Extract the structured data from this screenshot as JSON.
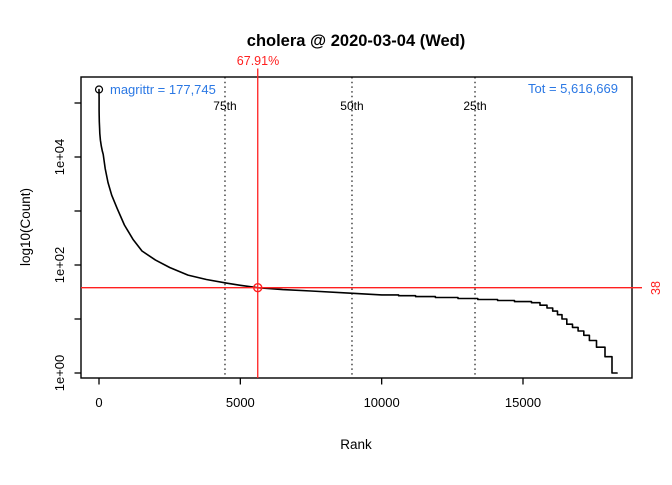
{
  "title": "cholera @ 2020-03-04 (Wed)",
  "annotations": {
    "top_package_label": "magrittr = 177,745",
    "total_label": "Tot =  5,616,669",
    "percent_label": "67.91%",
    "crosshair_value_label": "38"
  },
  "colors": {
    "accent_red": "#FF1F1F",
    "accent_blue": "#2B78E4",
    "curve_black": "#000000"
  },
  "axes": {
    "x": {
      "label": "Rank",
      "ticks": [
        0,
        5000,
        10000,
        15000
      ],
      "tick_labels": [
        "0",
        "5000",
        "10000",
        "15000"
      ]
    },
    "y": {
      "label": "log10(Count)",
      "ticks": [
        1,
        10,
        100,
        1000,
        10000,
        100000
      ],
      "tick_labels": [
        "1e+00",
        "",
        "1e+02",
        "",
        "1e+04",
        ""
      ]
    }
  },
  "chart_data": {
    "type": "line",
    "title": "cholera @ 2020-03-04 (Wed)",
    "xlabel": "Rank",
    "ylabel": "log10(Count)",
    "xlim": [
      0,
      18330
    ],
    "ylim": [
      1,
      177745
    ],
    "y_scale": "log10",
    "grid": false,
    "top_point": {
      "rank": 1,
      "package": "magrittr",
      "count": 177745
    },
    "total_downloads": 5616669,
    "crosshair": {
      "rank": 5616,
      "count": 38,
      "percent": "67.91%"
    },
    "percentiles": [
      {
        "label": "75th",
        "rank": 4457
      },
      {
        "label": "50th",
        "rank": 8950
      },
      {
        "label": "25th",
        "rank": 13302
      }
    ],
    "points": [
      [
        1,
        177745
      ],
      [
        2,
        121000
      ],
      [
        3,
        97000
      ],
      [
        5,
        73000
      ],
      [
        8,
        56500
      ],
      [
        12,
        45200
      ],
      [
        20,
        34100
      ],
      [
        30,
        27300
      ],
      [
        50,
        20600
      ],
      [
        80,
        15900
      ],
      [
        120,
        12700
      ],
      [
        150,
        11200
      ],
      [
        220,
        6100
      ],
      [
        320,
        3370
      ],
      [
        450,
        1960
      ],
      [
        640,
        1120
      ],
      [
        900,
        550
      ],
      [
        1200,
        300
      ],
      [
        1520,
        182
      ],
      [
        2000,
        123
      ],
      [
        2500,
        90
      ],
      [
        3150,
        65
      ],
      [
        3800,
        54
      ],
      [
        4530,
        46
      ],
      [
        5000,
        42
      ],
      [
        5616,
        38
      ],
      [
        6500,
        35
      ],
      [
        7500,
        33
      ],
      [
        8900,
        30
      ],
      [
        10000,
        28
      ],
      [
        10600,
        28
      ],
      [
        10600,
        27
      ],
      [
        11200,
        27
      ],
      [
        11200,
        26
      ],
      [
        11900,
        26
      ],
      [
        11900,
        25
      ],
      [
        12700,
        25
      ],
      [
        12700,
        24
      ],
      [
        13400,
        24
      ],
      [
        13400,
        23
      ],
      [
        14100,
        23
      ],
      [
        14100,
        22
      ],
      [
        14700,
        22
      ],
      [
        14700,
        21
      ],
      [
        15300,
        21
      ],
      [
        15300,
        20
      ],
      [
        15600,
        20
      ],
      [
        15600,
        18
      ],
      [
        15850,
        18
      ],
      [
        15850,
        16
      ],
      [
        16050,
        16
      ],
      [
        16050,
        14
      ],
      [
        16220,
        14
      ],
      [
        16220,
        12
      ],
      [
        16380,
        12
      ],
      [
        16380,
        10
      ],
      [
        16550,
        10
      ],
      [
        16550,
        8
      ],
      [
        16750,
        8
      ],
      [
        16750,
        7
      ],
      [
        16950,
        7
      ],
      [
        16950,
        6
      ],
      [
        17150,
        6
      ],
      [
        17150,
        5
      ],
      [
        17350,
        5
      ],
      [
        17350,
        4
      ],
      [
        17600,
        4
      ],
      [
        17600,
        3
      ],
      [
        17900,
        3
      ],
      [
        17900,
        2
      ],
      [
        18150,
        2
      ],
      [
        18150,
        1
      ],
      [
        18330,
        1
      ]
    ]
  }
}
